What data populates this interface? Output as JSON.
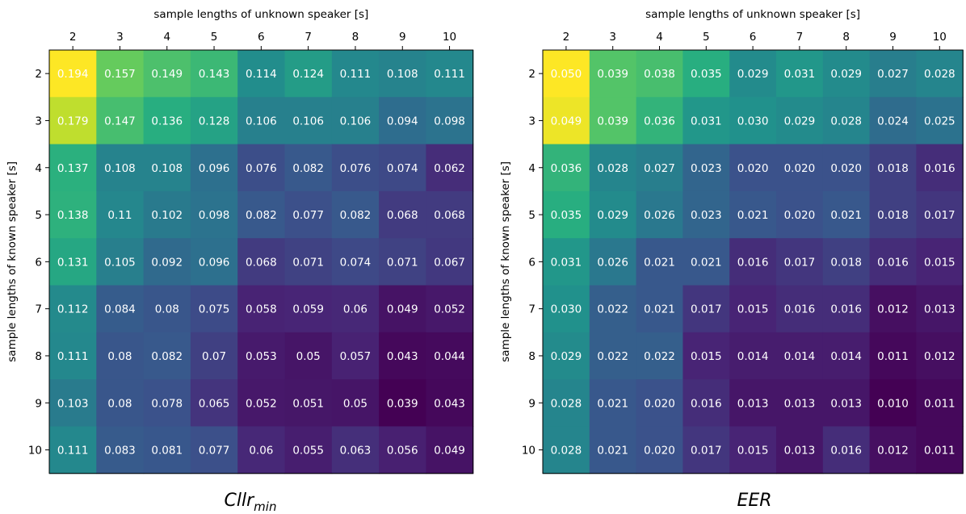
{
  "chart_data": [
    {
      "type": "heatmap",
      "title": "Cllr",
      "title_subscript": "min",
      "xlabel": "sample lengths of unknown speaker [s]",
      "ylabel": "sample lengths of known speaker [s]",
      "x_categories": [
        "2",
        "3",
        "4",
        "5",
        "6",
        "7",
        "8",
        "9",
        "10"
      ],
      "y_categories": [
        "2",
        "3",
        "4",
        "5",
        "6",
        "7",
        "8",
        "9",
        "10"
      ],
      "value_range": [
        0.039,
        0.194
      ],
      "colormap": "viridis",
      "values": [
        [
          0.194,
          0.157,
          0.149,
          0.143,
          0.114,
          0.124,
          0.111,
          0.108,
          0.111
        ],
        [
          0.179,
          0.147,
          0.136,
          0.128,
          0.106,
          0.106,
          0.106,
          0.094,
          0.098
        ],
        [
          0.137,
          0.108,
          0.108,
          0.096,
          0.076,
          0.082,
          0.076,
          0.074,
          0.062
        ],
        [
          0.138,
          0.11,
          0.102,
          0.098,
          0.082,
          0.077,
          0.082,
          0.068,
          0.068
        ],
        [
          0.131,
          0.105,
          0.092,
          0.096,
          0.068,
          0.071,
          0.074,
          0.071,
          0.067
        ],
        [
          0.112,
          0.084,
          0.08,
          0.075,
          0.058,
          0.059,
          0.06,
          0.049,
          0.052
        ],
        [
          0.111,
          0.08,
          0.082,
          0.07,
          0.053,
          0.05,
          0.057,
          0.043,
          0.044
        ],
        [
          0.103,
          0.08,
          0.078,
          0.065,
          0.052,
          0.051,
          0.05,
          0.039,
          0.043
        ],
        [
          0.111,
          0.083,
          0.081,
          0.077,
          0.06,
          0.055,
          0.063,
          0.056,
          0.049
        ]
      ],
      "labels": [
        [
          "0.194",
          "0.157",
          "0.149",
          "0.143",
          "0.114",
          "0.124",
          "0.111",
          "0.108",
          "0.111"
        ],
        [
          "0.179",
          "0.147",
          "0.136",
          "0.128",
          "0.106",
          "0.106",
          "0.106",
          "0.094",
          "0.098"
        ],
        [
          "0.137",
          "0.108",
          "0.108",
          "0.096",
          "0.076",
          "0.082",
          "0.076",
          "0.074",
          "0.062"
        ],
        [
          "0.138",
          "0.11",
          "0.102",
          "0.098",
          "0.082",
          "0.077",
          "0.082",
          "0.068",
          "0.068"
        ],
        [
          "0.131",
          "0.105",
          "0.092",
          "0.096",
          "0.068",
          "0.071",
          "0.074",
          "0.071",
          "0.067"
        ],
        [
          "0.112",
          "0.084",
          "0.08",
          "0.075",
          "0.058",
          "0.059",
          "0.06",
          "0.049",
          "0.052"
        ],
        [
          "0.111",
          "0.08",
          "0.082",
          "0.07",
          "0.053",
          "0.05",
          "0.057",
          "0.043",
          "0.044"
        ],
        [
          "0.103",
          "0.08",
          "0.078",
          "0.065",
          "0.052",
          "0.051",
          "0.05",
          "0.039",
          "0.043"
        ],
        [
          "0.111",
          "0.083",
          "0.081",
          "0.077",
          "0.06",
          "0.055",
          "0.063",
          "0.056",
          "0.049"
        ]
      ]
    },
    {
      "type": "heatmap",
      "title": "EER",
      "xlabel": "sample lengths of unknown speaker [s]",
      "ylabel": "sample lengths of known speaker [s]",
      "x_categories": [
        "2",
        "3",
        "4",
        "5",
        "6",
        "7",
        "8",
        "9",
        "10"
      ],
      "y_categories": [
        "2",
        "3",
        "4",
        "5",
        "6",
        "7",
        "8",
        "9",
        "10"
      ],
      "value_range": [
        0.01,
        0.05
      ],
      "colormap": "viridis",
      "values": [
        [
          0.05,
          0.039,
          0.038,
          0.035,
          0.029,
          0.031,
          0.029,
          0.027,
          0.028
        ],
        [
          0.049,
          0.039,
          0.036,
          0.031,
          0.03,
          0.029,
          0.028,
          0.024,
          0.025
        ],
        [
          0.036,
          0.028,
          0.027,
          0.023,
          0.02,
          0.02,
          0.02,
          0.018,
          0.016
        ],
        [
          0.035,
          0.029,
          0.026,
          0.023,
          0.021,
          0.02,
          0.021,
          0.018,
          0.017
        ],
        [
          0.031,
          0.026,
          0.021,
          0.021,
          0.016,
          0.017,
          0.018,
          0.016,
          0.015
        ],
        [
          0.03,
          0.022,
          0.021,
          0.017,
          0.015,
          0.016,
          0.016,
          0.012,
          0.013
        ],
        [
          0.029,
          0.022,
          0.022,
          0.015,
          0.014,
          0.014,
          0.014,
          0.011,
          0.012
        ],
        [
          0.028,
          0.021,
          0.02,
          0.016,
          0.013,
          0.013,
          0.013,
          0.01,
          0.011
        ],
        [
          0.028,
          0.021,
          0.02,
          0.017,
          0.015,
          0.013,
          0.016,
          0.012,
          0.011
        ]
      ],
      "labels": [
        [
          "0.050",
          "0.039",
          "0.038",
          "0.035",
          "0.029",
          "0.031",
          "0.029",
          "0.027",
          "0.028"
        ],
        [
          "0.049",
          "0.039",
          "0.036",
          "0.031",
          "0.030",
          "0.029",
          "0.028",
          "0.024",
          "0.025"
        ],
        [
          "0.036",
          "0.028",
          "0.027",
          "0.023",
          "0.020",
          "0.020",
          "0.020",
          "0.018",
          "0.016"
        ],
        [
          "0.035",
          "0.029",
          "0.026",
          "0.023",
          "0.021",
          "0.020",
          "0.021",
          "0.018",
          "0.017"
        ],
        [
          "0.031",
          "0.026",
          "0.021",
          "0.021",
          "0.016",
          "0.017",
          "0.018",
          "0.016",
          "0.015"
        ],
        [
          "0.030",
          "0.022",
          "0.021",
          "0.017",
          "0.015",
          "0.016",
          "0.016",
          "0.012",
          "0.013"
        ],
        [
          "0.029",
          "0.022",
          "0.022",
          "0.015",
          "0.014",
          "0.014",
          "0.014",
          "0.011",
          "0.012"
        ],
        [
          "0.028",
          "0.021",
          "0.020",
          "0.016",
          "0.013",
          "0.013",
          "0.013",
          "0.010",
          "0.011"
        ],
        [
          "0.028",
          "0.021",
          "0.020",
          "0.017",
          "0.015",
          "0.013",
          "0.016",
          "0.012",
          "0.011"
        ]
      ]
    }
  ]
}
